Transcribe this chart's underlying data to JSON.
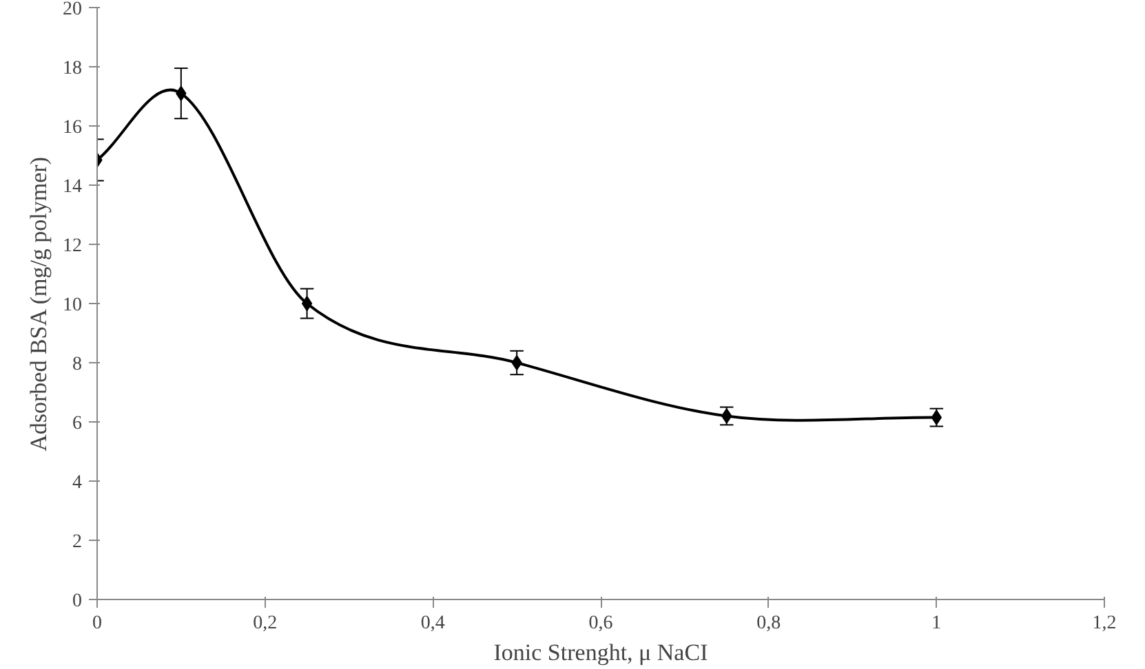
{
  "chart_data": {
    "type": "line",
    "xlabel": "Ionic Strenght, μ NaCI",
    "ylabel": "Adsorbed BSA (mg/g polymer)",
    "x": [
      0,
      0.1,
      0.25,
      0.5,
      0.75,
      1
    ],
    "series": [
      {
        "color": "#000000",
        "values": [
          14.85,
          17.1,
          10.0,
          8.0,
          6.2,
          6.15
        ],
        "errors": [
          0.7,
          0.85,
          0.5,
          0.4,
          0.3,
          0.3
        ]
      }
    ],
    "xlim": [
      0,
      1.2
    ],
    "ylim": [
      0,
      20
    ],
    "xticks": [
      0,
      {
        "value": 0.2,
        "label": "0,2"
      },
      {
        "value": 0.4,
        "label": "0,4"
      },
      {
        "value": 0.6,
        "label": "0,6"
      },
      {
        "value": 0.8,
        "label": "0,8"
      },
      1,
      {
        "value": 1.2,
        "label": "1,2"
      }
    ],
    "yticks": [
      0,
      2,
      4,
      6,
      8,
      10,
      12,
      14,
      16,
      18,
      20
    ],
    "marker": "diamond",
    "line_style": "solid",
    "grid": false
  }
}
